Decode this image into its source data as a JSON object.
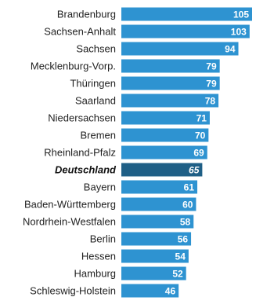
{
  "chart_data": {
    "type": "bar",
    "orientation": "horizontal",
    "categories": [
      "Brandenburg",
      "Sachsen-Anhalt",
      "Sachsen",
      "Mecklenburg-Vorp.",
      "Thüringen",
      "Saarland",
      "Niedersachsen",
      "Bremen",
      "Rheinland-Pfalz",
      "Deutschland",
      "Bayern",
      "Baden-Württemberg",
      "Nordrhein-Westfalen",
      "Berlin",
      "Hessen",
      "Hamburg",
      "Schleswig-Holstein"
    ],
    "values": [
      105,
      103,
      94,
      79,
      79,
      78,
      71,
      70,
      69,
      65,
      61,
      60,
      58,
      56,
      54,
      52,
      46
    ],
    "highlight": "Deutschland",
    "xlim": [
      0,
      105
    ],
    "grid": false,
    "legend": "none",
    "colors": {
      "bar": "#2e93d1",
      "highlight_bar": "#1f5f86",
      "value_text": "#ffffff",
      "label_text": "#222222",
      "separator": "#ffffff"
    }
  }
}
